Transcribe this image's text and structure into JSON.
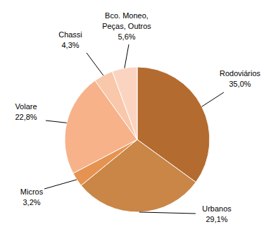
{
  "chart_data": {
    "type": "pie",
    "categories": [
      "Rodoviários",
      "Urbanos",
      "Micros",
      "Volare",
      "Chassi",
      "Bco. Moneo, Peças, Outros"
    ],
    "values": [
      35.0,
      29.1,
      3.2,
      22.8,
      4.3,
      5.6
    ],
    "value_labels": [
      "35,0%",
      "29,1%",
      "3,2%",
      "22,8%",
      "4,3%",
      "5,6%"
    ],
    "colors": [
      "#b46b30",
      "#c98647",
      "#e69351",
      "#f7b28a",
      "#f9c7aa",
      "#fbd4c1"
    ],
    "data_labels": true
  }
}
